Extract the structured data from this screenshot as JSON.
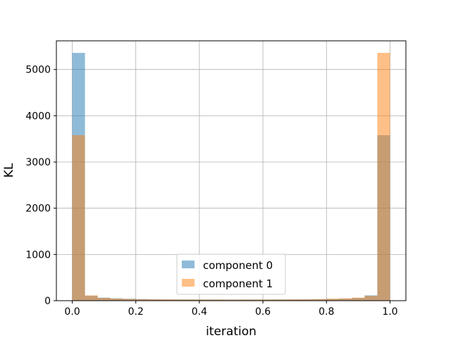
{
  "chart_data": {
    "type": "bar",
    "xlabel": "iteration",
    "ylabel": "KL",
    "xlim": [
      -0.05,
      1.05
    ],
    "ylim": [
      0,
      5620
    ],
    "x_ticks": [
      0.0,
      0.2,
      0.4,
      0.6,
      0.8,
      1.0
    ],
    "x_tick_labels": [
      "0.0",
      "0.2",
      "0.4",
      "0.6",
      "0.8",
      "1.0"
    ],
    "y_ticks": [
      0,
      1000,
      2000,
      3000,
      4000,
      5000
    ],
    "y_tick_labels": [
      "0",
      "1000",
      "2000",
      "3000",
      "4000",
      "5000"
    ],
    "grid": true,
    "legend_position": "lower-center",
    "bin_width": 0.04,
    "bin_starts": [
      0.0,
      0.04,
      0.08,
      0.12,
      0.16,
      0.2,
      0.24,
      0.28,
      0.32,
      0.36,
      0.4,
      0.44,
      0.48,
      0.52,
      0.56,
      0.6,
      0.64,
      0.68,
      0.72,
      0.76,
      0.8,
      0.84,
      0.88,
      0.92,
      0.96
    ],
    "series": [
      {
        "name": "component 0",
        "color": "#1f77b4",
        "values": [
          5360,
          105,
          65,
          50,
          42,
          35,
          30,
          28,
          27,
          26,
          25,
          25,
          24,
          25,
          25,
          26,
          27,
          28,
          30,
          33,
          38,
          45,
          60,
          115,
          3580
        ]
      },
      {
        "name": "component 1",
        "color": "#ff7f0e",
        "values": [
          3580,
          115,
          60,
          45,
          38,
          33,
          30,
          28,
          27,
          26,
          25,
          25,
          24,
          25,
          25,
          26,
          27,
          28,
          30,
          35,
          42,
          50,
          65,
          105,
          5360
        ]
      }
    ]
  }
}
